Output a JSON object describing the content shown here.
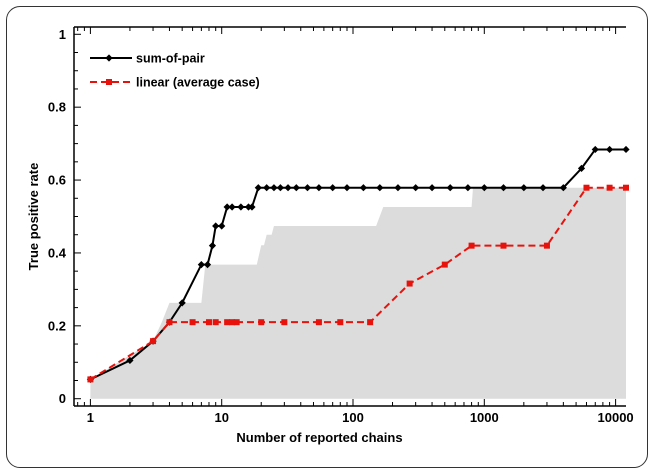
{
  "chart_data": {
    "type": "line",
    "xlabel": "Number of reported chains",
    "ylabel": "True positive rate",
    "x_scale": "log",
    "xlim": [
      0.75,
      12000
    ],
    "ylim": [
      -0.02,
      1.02
    ],
    "x_ticks": [
      1,
      10,
      100,
      1000,
      10000
    ],
    "x_tick_labels": [
      "1",
      "10",
      "100",
      "1000",
      "10000"
    ],
    "y_ticks": [
      0,
      0.2,
      0.4,
      0.6,
      0.8,
      1
    ],
    "y_tick_labels": [
      "0",
      "0.2",
      "0.4",
      "0.6",
      "0.8",
      "1"
    ],
    "legend_position": "top-left",
    "series": [
      {
        "name": "sum-of-pair",
        "color": "#000000",
        "style": "solid",
        "marker": "diamond",
        "x": [
          1,
          2,
          3,
          4,
          5,
          7,
          7.8,
          8.5,
          9,
          10,
          11,
          12,
          14,
          16,
          17,
          19,
          22,
          25,
          28,
          32,
          37,
          45,
          55,
          70,
          90,
          120,
          160,
          220,
          300,
          400,
          550,
          750,
          1000,
          1400,
          2000,
          2800,
          4000,
          5500,
          7000,
          9000,
          12000
        ],
        "y": [
          0.053,
          0.105,
          0.158,
          0.21,
          0.263,
          0.368,
          0.368,
          0.42,
          0.474,
          0.474,
          0.526,
          0.526,
          0.526,
          0.526,
          0.526,
          0.579,
          0.579,
          0.579,
          0.579,
          0.579,
          0.579,
          0.579,
          0.579,
          0.579,
          0.579,
          0.579,
          0.579,
          0.579,
          0.579,
          0.579,
          0.579,
          0.579,
          0.579,
          0.579,
          0.579,
          0.579,
          0.579,
          0.632,
          0.684,
          0.684,
          0.684
        ]
      },
      {
        "name": "linear (average case)",
        "color": "#e8120c",
        "style": "dashed",
        "marker": "square",
        "x": [
          1,
          3,
          4,
          6,
          8,
          9,
          11,
          12,
          13,
          20,
          30,
          55,
          80,
          135,
          270,
          500,
          800,
          1400,
          3000,
          6000,
          9000,
          12000
        ],
        "y": [
          0.053,
          0.158,
          0.21,
          0.21,
          0.21,
          0.21,
          0.21,
          0.21,
          0.21,
          0.21,
          0.21,
          0.21,
          0.21,
          0.21,
          0.316,
          0.368,
          0.42,
          0.42,
          0.42,
          0.579,
          0.579,
          0.579
        ]
      }
    ],
    "shaded_band": {
      "color": "#dcdcdc",
      "x": [
        1,
        3,
        3.5,
        4,
        7,
        7.5,
        18.5,
        20,
        21,
        22,
        24,
        25,
        150,
        170,
        800,
        820,
        12000
      ],
      "y_upper": [
        0.053,
        0.158,
        0.21,
        0.263,
        0.263,
        0.368,
        0.368,
        0.421,
        0.421,
        0.45,
        0.45,
        0.474,
        0.474,
        0.526,
        0.526,
        0.579,
        0.579
      ]
    }
  }
}
